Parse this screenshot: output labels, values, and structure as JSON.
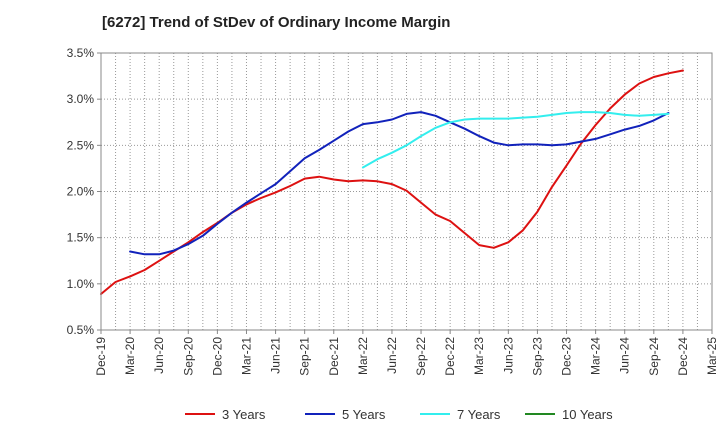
{
  "chart_data": {
    "type": "line",
    "title": "[6272]  Trend of StDev of Ordinary Income Margin",
    "xlabel": "",
    "ylabel": "",
    "x_ticks": [
      "Dec-19",
      "Mar-20",
      "Jun-20",
      "Sep-20",
      "Dec-20",
      "Mar-21",
      "Jun-21",
      "Sep-21",
      "Dec-21",
      "Mar-22",
      "Jun-22",
      "Sep-22",
      "Dec-22",
      "Mar-23",
      "Jun-23",
      "Sep-23",
      "Dec-23",
      "Mar-24",
      "Jun-24",
      "Sep-24",
      "Dec-24",
      "Mar-25"
    ],
    "y_ticks": [
      "0.5%",
      "1.0%",
      "1.5%",
      "2.0%",
      "2.5%",
      "3.0%",
      "3.5%"
    ],
    "ylim": [
      0.5,
      3.5
    ],
    "grid": true,
    "legend_position": "bottom",
    "series": [
      {
        "name": "3 Years",
        "color": "#dd1111",
        "points": [
          [
            0,
            0.89
          ],
          [
            0.5,
            1.02
          ],
          [
            1,
            1.08
          ],
          [
            1.5,
            1.15
          ],
          [
            2,
            1.25
          ],
          [
            2.5,
            1.35
          ],
          [
            3,
            1.45
          ],
          [
            3.5,
            1.56
          ],
          [
            4,
            1.66
          ],
          [
            4.5,
            1.77
          ],
          [
            5,
            1.86
          ],
          [
            5.5,
            1.93
          ],
          [
            6,
            1.99
          ],
          [
            6.5,
            2.06
          ],
          [
            7,
            2.14
          ],
          [
            7.5,
            2.16
          ],
          [
            8,
            2.13
          ],
          [
            8.5,
            2.11
          ],
          [
            9,
            2.12
          ],
          [
            9.5,
            2.11
          ],
          [
            10,
            2.08
          ],
          [
            10.5,
            2.01
          ],
          [
            11,
            1.88
          ],
          [
            11.5,
            1.75
          ],
          [
            12,
            1.68
          ],
          [
            12.5,
            1.55
          ],
          [
            13,
            1.42
          ],
          [
            13.5,
            1.39
          ],
          [
            14,
            1.45
          ],
          [
            14.5,
            1.58
          ],
          [
            15,
            1.78
          ],
          [
            15.5,
            2.05
          ],
          [
            16,
            2.28
          ],
          [
            16.5,
            2.52
          ],
          [
            17,
            2.72
          ],
          [
            17.5,
            2.9
          ],
          [
            18,
            3.05
          ],
          [
            18.5,
            3.17
          ],
          [
            19,
            3.24
          ],
          [
            19.5,
            3.28
          ],
          [
            20,
            3.31
          ]
        ]
      },
      {
        "name": "5 Years",
        "color": "#1122bb",
        "points": [
          [
            1,
            1.35
          ],
          [
            1.5,
            1.32
          ],
          [
            2,
            1.32
          ],
          [
            2.5,
            1.36
          ],
          [
            3,
            1.43
          ],
          [
            3.5,
            1.52
          ],
          [
            4,
            1.65
          ],
          [
            4.5,
            1.77
          ],
          [
            5,
            1.88
          ],
          [
            5.5,
            1.98
          ],
          [
            6,
            2.08
          ],
          [
            6.5,
            2.22
          ],
          [
            7,
            2.36
          ],
          [
            7.5,
            2.45
          ],
          [
            8,
            2.55
          ],
          [
            8.5,
            2.65
          ],
          [
            9,
            2.73
          ],
          [
            9.5,
            2.75
          ],
          [
            10,
            2.78
          ],
          [
            10.5,
            2.84
          ],
          [
            11,
            2.86
          ],
          [
            11.5,
            2.82
          ],
          [
            12,
            2.75
          ],
          [
            12.5,
            2.68
          ],
          [
            13,
            2.6
          ],
          [
            13.5,
            2.53
          ],
          [
            14,
            2.5
          ],
          [
            14.5,
            2.51
          ],
          [
            15,
            2.51
          ],
          [
            15.5,
            2.5
          ],
          [
            16,
            2.51
          ],
          [
            16.5,
            2.54
          ],
          [
            17,
            2.57
          ],
          [
            17.5,
            2.62
          ],
          [
            18,
            2.67
          ],
          [
            18.5,
            2.71
          ],
          [
            19,
            2.77
          ],
          [
            19.5,
            2.85
          ]
        ]
      },
      {
        "name": "7 Years",
        "color": "#33eeee",
        "points": [
          [
            9,
            2.26
          ],
          [
            9.5,
            2.35
          ],
          [
            10,
            2.42
          ],
          [
            10.5,
            2.5
          ],
          [
            11,
            2.6
          ],
          [
            11.5,
            2.69
          ],
          [
            12,
            2.75
          ],
          [
            12.5,
            2.78
          ],
          [
            13,
            2.79
          ],
          [
            13.5,
            2.79
          ],
          [
            14,
            2.79
          ],
          [
            14.5,
            2.8
          ],
          [
            15,
            2.81
          ],
          [
            15.5,
            2.83
          ],
          [
            16,
            2.85
          ],
          [
            16.5,
            2.86
          ],
          [
            17,
            2.86
          ],
          [
            17.5,
            2.85
          ],
          [
            18,
            2.83
          ],
          [
            18.5,
            2.82
          ],
          [
            19,
            2.83
          ],
          [
            19.5,
            2.84
          ]
        ]
      },
      {
        "name": "10 Years",
        "color": "#228822",
        "points": []
      }
    ]
  }
}
